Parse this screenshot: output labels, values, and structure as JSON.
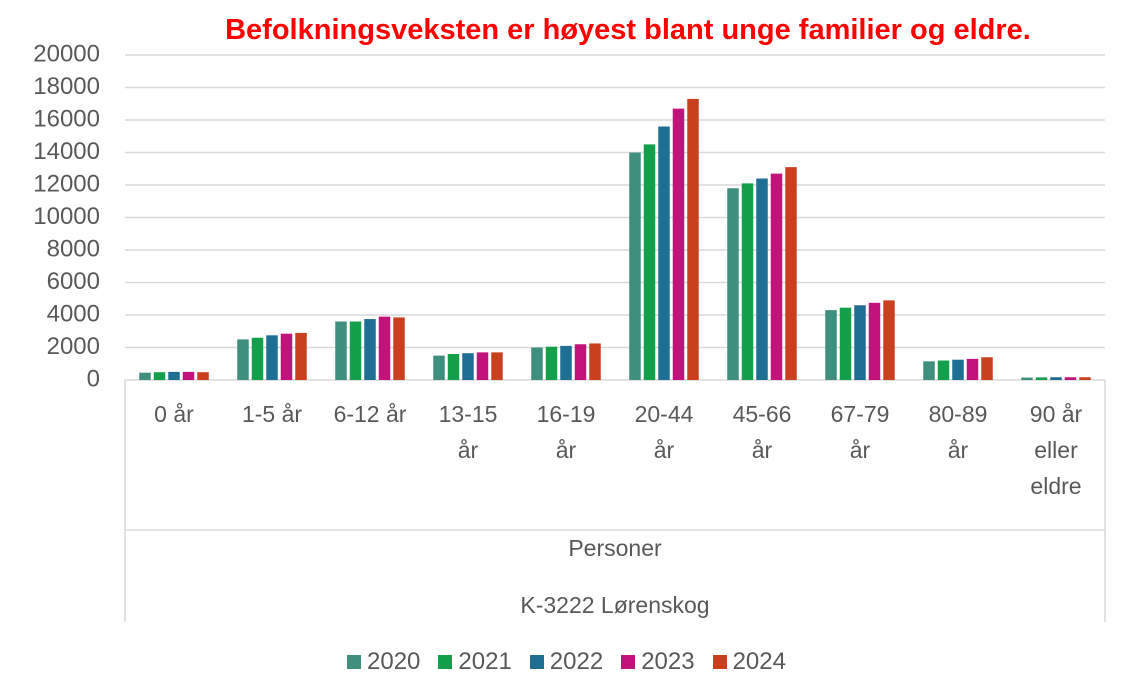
{
  "chart_data": {
    "type": "bar",
    "title": "Befolkningsveksten er høyest blant unge familier og eldre.",
    "x_label": "Personer",
    "group_label": "K-3222 Lørenskog",
    "categories": [
      "0 år",
      "1-5 år",
      "6-12 år",
      "13-15 år",
      "16-19 år",
      "20-44 år",
      "45-66 år",
      "67-79 år",
      "80-89 år",
      "90 år eller eldre"
    ],
    "series": [
      {
        "name": "2020",
        "color": "#3f8f7f",
        "values": [
          450,
          2500,
          3600,
          1500,
          2000,
          14000,
          11800,
          4300,
          1150,
          150
        ]
      },
      {
        "name": "2021",
        "color": "#14a04a",
        "values": [
          480,
          2600,
          3600,
          1600,
          2050,
          14500,
          12100,
          4450,
          1200,
          160
        ]
      },
      {
        "name": "2022",
        "color": "#1f6e94",
        "values": [
          500,
          2750,
          3750,
          1650,
          2100,
          15600,
          12400,
          4600,
          1250,
          170
        ]
      },
      {
        "name": "2023",
        "color": "#c1137a",
        "values": [
          500,
          2850,
          3900,
          1700,
          2200,
          16700,
          12700,
          4750,
          1300,
          170
        ]
      },
      {
        "name": "2024",
        "color": "#c9401e",
        "values": [
          480,
          2900,
          3850,
          1700,
          2250,
          17300,
          13100,
          4900,
          1400,
          170
        ]
      }
    ],
    "ylim": [
      0,
      20000
    ],
    "yticks": [
      0,
      2000,
      4000,
      6000,
      8000,
      10000,
      12000,
      14000,
      16000,
      18000,
      20000
    ],
    "grid": true
  }
}
